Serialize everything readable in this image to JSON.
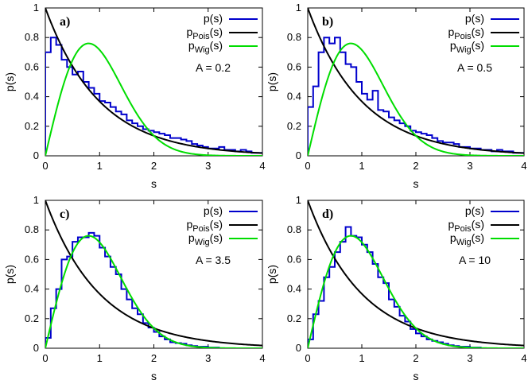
{
  "chart_data": [
    {
      "type": "line",
      "panel_label": "a)",
      "annotation": "A = 0.2",
      "xlabel": "s",
      "ylabel": "p(s)",
      "xlim": [
        0,
        4
      ],
      "ylim": [
        0,
        1
      ],
      "xticks": [
        "0",
        "1",
        "2",
        "3",
        "4"
      ],
      "yticks": [
        "0",
        "0.2",
        "0.4",
        "0.6",
        "0.8",
        "1"
      ],
      "legend_position": "top-right",
      "series": [
        {
          "name": "p(s)",
          "kind": "histogram",
          "color": "#0000cc",
          "bin_width": 0.1,
          "values": [
            0.7,
            0.8,
            0.75,
            0.65,
            0.6,
            0.55,
            0.57,
            0.5,
            0.46,
            0.42,
            0.37,
            0.36,
            0.33,
            0.3,
            0.28,
            0.24,
            0.22,
            0.2,
            0.18,
            0.17,
            0.16,
            0.15,
            0.14,
            0.12,
            0.12,
            0.11,
            0.1,
            0.08,
            0.07,
            0.06,
            0.05,
            0.05,
            0.06,
            0.04,
            0.04,
            0.03,
            0.04,
            0.03,
            0.02,
            0.02
          ]
        },
        {
          "name": "pPois(s)",
          "kind": "exp",
          "color": "#000000"
        },
        {
          "name": "pWig(s)",
          "kind": "wigner",
          "color": "#00dd00"
        }
      ]
    },
    {
      "type": "line",
      "panel_label": "b)",
      "annotation": "A = 0.5",
      "xlabel": "s",
      "ylabel": "p(s)",
      "xlim": [
        0,
        4
      ],
      "ylim": [
        0,
        1
      ],
      "xticks": [
        "0",
        "1",
        "2",
        "3",
        "4"
      ],
      "yticks": [
        "0",
        "0.2",
        "0.4",
        "0.6",
        "0.8",
        "1"
      ],
      "legend_position": "top-right",
      "series": [
        {
          "name": "p(s)",
          "kind": "histogram",
          "color": "#0000cc",
          "bin_width": 0.1,
          "values": [
            0.33,
            0.47,
            0.7,
            0.8,
            0.76,
            0.8,
            0.7,
            0.62,
            0.6,
            0.5,
            0.42,
            0.38,
            0.44,
            0.31,
            0.3,
            0.26,
            0.24,
            0.22,
            0.2,
            0.17,
            0.16,
            0.15,
            0.14,
            0.12,
            0.1,
            0.09,
            0.09,
            0.08,
            0.06,
            0.06,
            0.05,
            0.05,
            0.04,
            0.04,
            0.03,
            0.04,
            0.03,
            0.03,
            0.02,
            0.02
          ]
        },
        {
          "name": "pPois(s)",
          "kind": "exp",
          "color": "#000000"
        },
        {
          "name": "pWig(s)",
          "kind": "wigner",
          "color": "#00dd00"
        }
      ]
    },
    {
      "type": "line",
      "panel_label": "c)",
      "annotation": "A = 3.5",
      "xlabel": "s",
      "ylabel": "p(s)",
      "xlim": [
        0,
        4
      ],
      "ylim": [
        0,
        1
      ],
      "xticks": [
        "0",
        "1",
        "2",
        "3",
        "4"
      ],
      "yticks": [
        "0",
        "0.2",
        "0.4",
        "0.6",
        "0.8",
        "1"
      ],
      "legend_position": "top-right",
      "series": [
        {
          "name": "p(s)",
          "kind": "histogram",
          "color": "#0000cc",
          "bin_width": 0.1,
          "values": [
            0.07,
            0.27,
            0.4,
            0.6,
            0.62,
            0.72,
            0.75,
            0.75,
            0.78,
            0.76,
            0.68,
            0.62,
            0.55,
            0.5,
            0.4,
            0.33,
            0.27,
            0.23,
            0.17,
            0.14,
            0.11,
            0.08,
            0.06,
            0.04,
            0.035,
            0.03,
            0.02,
            0.015,
            0.01,
            0.01,
            0.005,
            0.005,
            0,
            0,
            0,
            0,
            0,
            0,
            0,
            0
          ]
        },
        {
          "name": "pPois(s)",
          "kind": "exp",
          "color": "#000000"
        },
        {
          "name": "pWig(s)",
          "kind": "wigner",
          "color": "#00dd00"
        }
      ]
    },
    {
      "type": "line",
      "panel_label": "d)",
      "annotation": "A = 10",
      "xlabel": "s",
      "ylabel": "p(s)",
      "xlim": [
        0,
        4
      ],
      "ylim": [
        0,
        1
      ],
      "xticks": [
        "0",
        "1",
        "2",
        "3",
        "4"
      ],
      "yticks": [
        "0",
        "0.2",
        "0.4",
        "0.6",
        "0.8",
        "1"
      ],
      "legend_position": "top-right",
      "series": [
        {
          "name": "p(s)",
          "kind": "histogram",
          "color": "#0000cc",
          "bin_width": 0.1,
          "values": [
            0.06,
            0.23,
            0.32,
            0.48,
            0.55,
            0.65,
            0.72,
            0.82,
            0.76,
            0.75,
            0.7,
            0.65,
            0.57,
            0.48,
            0.44,
            0.33,
            0.28,
            0.22,
            0.18,
            0.13,
            0.1,
            0.08,
            0.06,
            0.05,
            0.04,
            0.03,
            0.02,
            0.015,
            0.01,
            0.01,
            0.005,
            0.005,
            0,
            0,
            0,
            0,
            0,
            0,
            0,
            0
          ]
        },
        {
          "name": "pPois(s)",
          "kind": "exp",
          "color": "#000000"
        },
        {
          "name": "pWig(s)",
          "kind": "wigner",
          "color": "#00dd00"
        }
      ]
    }
  ]
}
